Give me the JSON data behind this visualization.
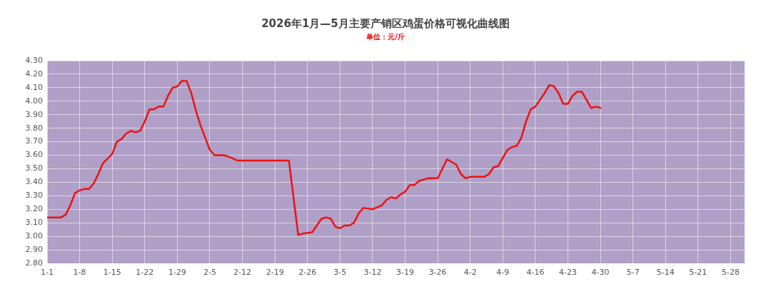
{
  "chart_data": {
    "type": "line",
    "title": "2026年1月—5月主要产销区鸡蛋价格可视化曲线图",
    "subtitle": "单位：元/斤",
    "x": [
      "--01-01",
      "--01-04",
      "--01-05",
      "--01-06",
      "--01-07",
      "--01-08",
      "--01-09",
      "--01-10",
      "--01-11",
      "--01-12",
      "--01-13",
      "--01-15",
      "--01-16",
      "--01-17",
      "--01-18",
      "--01-19",
      "--01-20",
      "--01-21",
      "--01-22",
      "--01-23",
      "--01-24",
      "--01-25",
      "--01-26",
      "--01-27",
      "--01-28",
      "--01-29",
      "--01-30",
      "--01-31",
      "--02-01",
      "--02-02",
      "--02-03",
      "--02-04",
      "--02-05",
      "--02-06",
      "--02-08",
      "--02-09",
      "--02-11",
      "--02-22",
      "--02-24",
      "--02-25",
      "--02-27",
      "--03-01",
      "--03-02",
      "--03-03",
      "--03-04",
      "--03-05",
      "--03-06",
      "--03-07",
      "--03-08",
      "--03-09",
      "--03-10",
      "--03-12",
      "--03-14",
      "--03-15",
      "--03-16",
      "--03-17",
      "--03-18",
      "--03-19",
      "--03-20",
      "--03-21",
      "--03-22",
      "--03-23",
      "--03-24",
      "--03-26",
      "--03-27",
      "--03-28",
      "--03-29",
      "--03-30",
      "--03-31",
      "--04-01",
      "--04-02",
      "--04-05",
      "--04-06",
      "--04-07",
      "--04-08",
      "--04-09",
      "--04-10",
      "--04-11",
      "--04-12",
      "--04-13",
      "--04-14",
      "--04-15",
      "--04-16",
      "--04-17",
      "--04-18",
      "--04-19",
      "--04-20",
      "--04-21",
      "--04-22",
      "--04-23",
      "--04-24",
      "--04-25",
      "--04-26",
      "--04-27",
      "--04-28",
      "--04-29",
      "--04-30"
    ],
    "series": [
      {
        "color": "#ee1111",
        "values": [
          3.14,
          3.14,
          3.16,
          3.23,
          3.32,
          3.34,
          3.35,
          3.35,
          3.39,
          3.46,
          3.54,
          3.61,
          3.7,
          3.72,
          3.76,
          3.78,
          3.77,
          3.78,
          3.85,
          3.94,
          3.94,
          3.96,
          3.96,
          4.04,
          4.1,
          4.11,
          4.15,
          4.15,
          4.06,
          3.93,
          3.82,
          3.73,
          3.64,
          3.6,
          3.6,
          3.59,
          3.56,
          3.56,
          3.01,
          3.02,
          3.03,
          3.13,
          3.14,
          3.13,
          3.07,
          3.06,
          3.08,
          3.08,
          3.1,
          3.17,
          3.21,
          3.2,
          3.23,
          3.27,
          3.29,
          3.28,
          3.31,
          3.33,
          3.38,
          3.38,
          3.41,
          3.42,
          3.43,
          3.43,
          3.5,
          3.57,
          3.55,
          3.53,
          3.46,
          3.43,
          3.44,
          3.44,
          3.46,
          3.51,
          3.52,
          3.58,
          3.64,
          3.66,
          3.67,
          3.73,
          3.85,
          3.94,
          3.96,
          4.01,
          4.06,
          4.12,
          4.11,
          4.06,
          3.98,
          3.98,
          4.04,
          4.07,
          4.07,
          4.01,
          3.95,
          3.96,
          3.95
        ]
      }
    ],
    "xlim": [
      "--01-01",
      "--05-31"
    ],
    "xticks": [
      {
        "value": "--01-01",
        "label": "1-1"
      },
      {
        "value": "--01-08",
        "label": "1-8"
      },
      {
        "value": "--01-15",
        "label": "1-15"
      },
      {
        "value": "--01-22",
        "label": "1-22"
      },
      {
        "value": "--01-29",
        "label": "1-29"
      },
      {
        "value": "--02-05",
        "label": "2-5"
      },
      {
        "value": "--02-12",
        "label": "2-12"
      },
      {
        "value": "--02-19",
        "label": "2-19"
      },
      {
        "value": "--02-26",
        "label": "2-26"
      },
      {
        "value": "--03-05",
        "label": "3-5"
      },
      {
        "value": "--03-12",
        "label": "3-12"
      },
      {
        "value": "--03-19",
        "label": "3-19"
      },
      {
        "value": "--03-26",
        "label": "3-26"
      },
      {
        "value": "--04-02",
        "label": "4-2"
      },
      {
        "value": "--04-09",
        "label": "4-9"
      },
      {
        "value": "--04-16",
        "label": "4-16"
      },
      {
        "value": "--04-23",
        "label": "4-23"
      },
      {
        "value": "--04-30",
        "label": "4-30"
      },
      {
        "value": "--05-07",
        "label": "5-7"
      },
      {
        "value": "--05-14",
        "label": "5-14"
      },
      {
        "value": "--05-21",
        "label": "5-21"
      },
      {
        "value": "--05-28",
        "label": "5-28"
      }
    ],
    "ylim": [
      2.8,
      4.3
    ],
    "yticks": [
      {
        "value": 2.8,
        "label": "2.80"
      },
      {
        "value": 2.9,
        "label": "2.90"
      },
      {
        "value": 3.0,
        "label": "3.00"
      },
      {
        "value": 3.1,
        "label": "3.10"
      },
      {
        "value": 3.2,
        "label": "3.20"
      },
      {
        "value": 3.3,
        "label": "3.30"
      },
      {
        "value": 3.4,
        "label": "3.40"
      },
      {
        "value": 3.5,
        "label": "3.50"
      },
      {
        "value": 3.6,
        "label": "3.60"
      },
      {
        "value": 3.7,
        "label": "3.70"
      },
      {
        "value": 3.8,
        "label": "3.80"
      },
      {
        "value": 3.9,
        "label": "3.90"
      },
      {
        "value": 4.0,
        "label": "4.00"
      },
      {
        "value": 4.1,
        "label": "4.10"
      },
      {
        "value": 4.2,
        "label": "4.20"
      },
      {
        "value": 4.3,
        "label": "4.30"
      }
    ],
    "grid": true,
    "legend": false,
    "marker": "none",
    "line_style": "solid"
  }
}
